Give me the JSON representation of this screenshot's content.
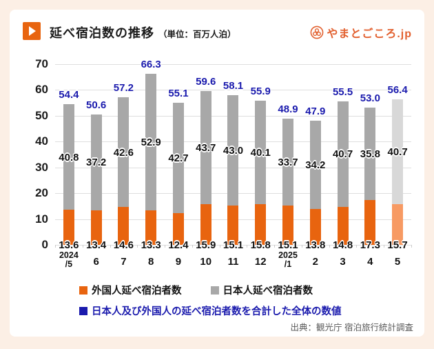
{
  "header": {
    "title": "延べ宿泊数の推移",
    "unit": "（単位：百万人泊）",
    "logo_text": "やまとごころ.jp"
  },
  "colors": {
    "accent_orange": "#e8640f",
    "muted_orange": "#f79a63",
    "bar_gray": "#a8a8a8",
    "muted_gray": "#d8d8d8",
    "total_blue": "#1a1aad",
    "background": "#fcefe5"
  },
  "chart_data": {
    "type": "bar",
    "stacked": true,
    "title": "延べ宿泊数の推移",
    "unit": "百万人泊",
    "ylim": [
      0,
      70
    ],
    "yticks": [
      70,
      60,
      50,
      40,
      30,
      20,
      10,
      0
    ],
    "grid": true,
    "categories": [
      [
        "2024",
        "/5"
      ],
      [
        "6"
      ],
      [
        "7"
      ],
      [
        "8"
      ],
      [
        "9"
      ],
      [
        "10"
      ],
      [
        "11"
      ],
      [
        "12"
      ],
      [
        "2025",
        "/1"
      ],
      [
        "2"
      ],
      [
        "3"
      ],
      [
        "4"
      ],
      [
        "5"
      ]
    ],
    "series": [
      {
        "name": "外国人延べ宿泊者数",
        "color": "#e8640f",
        "muted_color": "#f79a63",
        "values": [
          13.6,
          13.4,
          14.6,
          13.3,
          12.4,
          15.9,
          15.1,
          15.8,
          15.1,
          13.8,
          14.8,
          17.3,
          15.7
        ]
      },
      {
        "name": "日本人延べ宿泊者数",
        "color": "#a8a8a8",
        "muted_color": "#d8d8d8",
        "values": [
          40.8,
          37.2,
          42.6,
          52.9,
          42.7,
          43.7,
          43.0,
          40.1,
          33.7,
          34.2,
          40.7,
          35.8,
          40.7
        ]
      }
    ],
    "totals": [
      54.4,
      50.6,
      57.2,
      66.3,
      55.1,
      59.6,
      58.1,
      55.9,
      48.9,
      47.9,
      55.5,
      53.0,
      56.4
    ],
    "muted_last_bar": true,
    "legend_position": "bottom"
  },
  "legend": {
    "foreign_label": "外国人延べ宿泊者数",
    "japanese_label": "日本人延べ宿泊者数",
    "total_label": "日本人及び外国人の延べ宿泊者数を合計した全体の数値"
  },
  "source": "出典：観光庁 宿泊旅行統計調査"
}
